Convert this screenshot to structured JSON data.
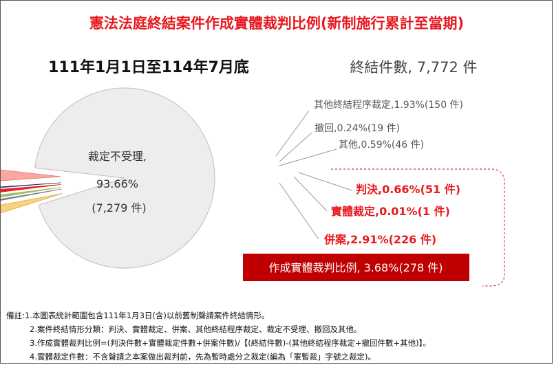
{
  "title": "憲法法庭終結案件作成實體裁判比例(新制施行累計至當期)",
  "period": "111年1月1日至114年7月底",
  "total": "終結件數, 7,772 件",
  "colors": {
    "title": "#e8191f",
    "highlight_bg": "#c00000",
    "dashed": "#e03030",
    "slice_main": "#ededed",
    "slice_other_termination": "#f7d47c",
    "slice_withdrawal": "#7f7f7f",
    "slice_other": "#9bbf6a",
    "slice_judgment": "#ee1c25",
    "slice_substantive_ruling": "#1f2f5e",
    "slice_consolidation": "#f9a8a0"
  },
  "chart_data": {
    "type": "pie",
    "unit": "件",
    "total": 7772,
    "slices": [
      {
        "label": "裁定不受理",
        "percent": 93.66,
        "count": 7279,
        "count_text": "(7,279 件)",
        "color": "#ededed"
      },
      {
        "label": "其他終結程序裁定,1.93%(150 件)",
        "percent": 1.93,
        "count": 150,
        "color": "#f7d47c"
      },
      {
        "label": "撤回,0.24%(19 件)",
        "percent": 0.24,
        "count": 19,
        "color": "#7f7f7f"
      },
      {
        "label": "其他,0.59%(46 件)",
        "percent": 0.59,
        "count": 46,
        "color": "#9bbf6a"
      },
      {
        "label": "判決,0.66%(51 件)",
        "percent": 0.66,
        "count": 51,
        "color": "#ee1c25"
      },
      {
        "label": "實體裁定,0.01%(1 件)",
        "percent": 0.01,
        "count": 1,
        "color": "#1f2f5e"
      },
      {
        "label": "併案,2.91%(226 件)",
        "percent": 2.91,
        "count": 226,
        "color": "#f9a8a0"
      }
    ],
    "main_label_lines": [
      "裁定不受理,",
      "93.66%",
      "(7,279 件)"
    ],
    "highlight": "作成實體裁判比例, 3.68%(278 件)",
    "highlight_percent": 3.68,
    "highlight_count": 278
  },
  "notes": [
    "備註:1.本圖表統計範圍包含111年1月3日(含)以前舊制聲請案件終結情形。",
    "2.案件終結情形分類：判決、實體裁定、併案、其他終結程序裁定、裁定不受理、撤回及其他。",
    "3.作成實體裁判比例=(判決件數+實體裁定件數+併案件數)/【(終結件數)-(其他終結程序裁定+撤回件數+其他)】。",
    "4.實體裁定件數：不含聲請之本案做出裁判前，先為暫時處分之裁定(編為「憲暫裁」字號之裁定)。"
  ]
}
